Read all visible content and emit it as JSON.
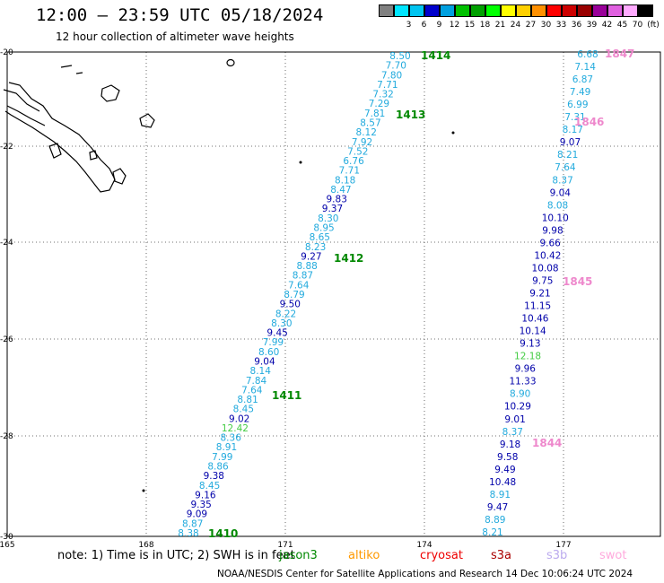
{
  "header": {
    "title": "12:00 – 23:59 UTC 05/18/2024",
    "subtitle": "12 hour collection of altimeter wave heights"
  },
  "legend": {
    "unit": "(ft)",
    "items": [
      {
        "label": "",
        "color": "#808080"
      },
      {
        "label": "3",
        "color": "#00e5ff"
      },
      {
        "label": "6",
        "color": "#00c4f0"
      },
      {
        "label": "9",
        "color": "#0000cc"
      },
      {
        "label": "12",
        "color": "#00a0e0"
      },
      {
        "label": "15",
        "color": "#00c000"
      },
      {
        "label": "18",
        "color": "#00a000"
      },
      {
        "label": "21",
        "color": "#00ff00"
      },
      {
        "label": "24",
        "color": "#ffff00"
      },
      {
        "label": "27",
        "color": "#ffd000"
      },
      {
        "label": "30",
        "color": "#ff9000"
      },
      {
        "label": "33",
        "color": "#ff0000"
      },
      {
        "label": "36",
        "color": "#cc0000"
      },
      {
        "label": "39",
        "color": "#990000"
      },
      {
        "label": "42",
        "color": "#990099"
      },
      {
        "label": "45",
        "color": "#e060e0"
      },
      {
        "label": "70",
        "color": "#ffaaff"
      },
      {
        "label": "",
        "color": "#000000"
      }
    ]
  },
  "axes": {
    "lat_labels": [
      "-20",
      "-22",
      "-24",
      "-26",
      "-28",
      "-30"
    ],
    "lon_labels": [
      "165",
      "168",
      "171",
      "174",
      "177"
    ]
  },
  "colors": {
    "wave_light": "#22aadd",
    "wave_dark": "#0000aa",
    "wave_green": "#44cc44",
    "pass_green": "#008800",
    "pass_pink": "#ee88cc"
  },
  "passes": [
    {
      "id": "1410",
      "color": "pass_green"
    },
    {
      "id": "1411",
      "color": "pass_green"
    },
    {
      "id": "1412",
      "color": "pass_green"
    },
    {
      "id": "1413",
      "color": "pass_green"
    },
    {
      "id": "1414",
      "color": "pass_green"
    },
    {
      "id": "1844",
      "color": "pass_pink"
    },
    {
      "id": "1845",
      "color": "pass_pink"
    },
    {
      "id": "1846",
      "color": "pass_pink"
    },
    {
      "id": "1847",
      "color": "pass_pink"
    }
  ],
  "track_west": [
    {
      "v": "8.50",
      "c": "wave_light"
    },
    {
      "v": "7.70",
      "c": "wave_light"
    },
    {
      "v": "7.80",
      "c": "wave_light"
    },
    {
      "v": "7.71",
      "c": "wave_light"
    },
    {
      "v": "7.32",
      "c": "wave_light"
    },
    {
      "v": "7.29",
      "c": "wave_light"
    },
    {
      "v": "7.81",
      "c": "wave_light"
    },
    {
      "v": "8.57",
      "c": "wave_light"
    },
    {
      "v": "8.12",
      "c": "wave_light"
    },
    {
      "v": "7.92",
      "c": "wave_light"
    },
    {
      "v": "7.52",
      "c": "wave_light"
    },
    {
      "v": "6.76",
      "c": "wave_light"
    },
    {
      "v": "7.71",
      "c": "wave_light"
    },
    {
      "v": "8.18",
      "c": "wave_light"
    },
    {
      "v": "8.47",
      "c": "wave_light"
    },
    {
      "v": "9.83",
      "c": "wave_dark"
    },
    {
      "v": "9.37",
      "c": "wave_dark"
    },
    {
      "v": "8.30",
      "c": "wave_light"
    },
    {
      "v": "8.95",
      "c": "wave_light"
    },
    {
      "v": "8.65",
      "c": "wave_light"
    },
    {
      "v": "8.23",
      "c": "wave_light"
    },
    {
      "v": "9.27",
      "c": "wave_dark"
    },
    {
      "v": "8.88",
      "c": "wave_light"
    },
    {
      "v": "8.87",
      "c": "wave_light"
    },
    {
      "v": "7.64",
      "c": "wave_light"
    },
    {
      "v": "8.79",
      "c": "wave_light"
    },
    {
      "v": "9.50",
      "c": "wave_dark"
    },
    {
      "v": "8.22",
      "c": "wave_light"
    },
    {
      "v": "8.30",
      "c": "wave_light"
    },
    {
      "v": "9.45",
      "c": "wave_dark"
    },
    {
      "v": "7.99",
      "c": "wave_light"
    },
    {
      "v": "8.60",
      "c": "wave_light"
    },
    {
      "v": "9.04",
      "c": "wave_dark"
    },
    {
      "v": "8.14",
      "c": "wave_light"
    },
    {
      "v": "7.84",
      "c": "wave_light"
    },
    {
      "v": "7.64",
      "c": "wave_light"
    },
    {
      "v": "8.81",
      "c": "wave_light"
    },
    {
      "v": "8.45",
      "c": "wave_light"
    },
    {
      "v": "9.02",
      "c": "wave_dark"
    },
    {
      "v": "12.42",
      "c": "wave_green"
    },
    {
      "v": "8.36",
      "c": "wave_light"
    },
    {
      "v": "8.91",
      "c": "wave_light"
    },
    {
      "v": "7.99",
      "c": "wave_light"
    },
    {
      "v": "8.86",
      "c": "wave_light"
    },
    {
      "v": "9.38",
      "c": "wave_dark"
    },
    {
      "v": "8.45",
      "c": "wave_light"
    },
    {
      "v": "9.16",
      "c": "wave_dark"
    },
    {
      "v": "9.35",
      "c": "wave_dark"
    },
    {
      "v": "9.09",
      "c": "wave_dark"
    },
    {
      "v": "8.87",
      "c": "wave_light"
    },
    {
      "v": "8.38",
      "c": "wave_light"
    }
  ],
  "track_east": [
    {
      "v": "6.68",
      "c": "wave_light"
    },
    {
      "v": "7.14",
      "c": "wave_light"
    },
    {
      "v": "6.87",
      "c": "wave_light"
    },
    {
      "v": "7.49",
      "c": "wave_light"
    },
    {
      "v": "6.99",
      "c": "wave_light"
    },
    {
      "v": "7.31",
      "c": "wave_light"
    },
    {
      "v": "8.17",
      "c": "wave_light"
    },
    {
      "v": "9.07",
      "c": "wave_dark"
    },
    {
      "v": "8.21",
      "c": "wave_light"
    },
    {
      "v": "7.64",
      "c": "wave_light"
    },
    {
      "v": "8.37",
      "c": "wave_light"
    },
    {
      "v": "9.04",
      "c": "wave_dark"
    },
    {
      "v": "8.08",
      "c": "wave_light"
    },
    {
      "v": "10.10",
      "c": "wave_dark"
    },
    {
      "v": "9.98",
      "c": "wave_dark"
    },
    {
      "v": "9.66",
      "c": "wave_dark"
    },
    {
      "v": "10.42",
      "c": "wave_dark"
    },
    {
      "v": "10.08",
      "c": "wave_dark"
    },
    {
      "v": "9.75",
      "c": "wave_dark"
    },
    {
      "v": "9.21",
      "c": "wave_dark"
    },
    {
      "v": "11.15",
      "c": "wave_dark"
    },
    {
      "v": "10.46",
      "c": "wave_dark"
    },
    {
      "v": "10.14",
      "c": "wave_dark"
    },
    {
      "v": "9.13",
      "c": "wave_dark"
    },
    {
      "v": "12.18",
      "c": "wave_green"
    },
    {
      "v": "9.96",
      "c": "wave_dark"
    },
    {
      "v": "11.33",
      "c": "wave_dark"
    },
    {
      "v": "8.90",
      "c": "wave_light"
    },
    {
      "v": "10.29",
      "c": "wave_dark"
    },
    {
      "v": "9.01",
      "c": "wave_dark"
    },
    {
      "v": "8.37",
      "c": "wave_light"
    },
    {
      "v": "9.18",
      "c": "wave_dark"
    },
    {
      "v": "9.58",
      "c": "wave_dark"
    },
    {
      "v": "9.49",
      "c": "wave_dark"
    },
    {
      "v": "10.48",
      "c": "wave_dark"
    },
    {
      "v": "8.91",
      "c": "wave_light"
    },
    {
      "v": "9.47",
      "c": "wave_dark"
    },
    {
      "v": "8.89",
      "c": "wave_light"
    },
    {
      "v": "8.21",
      "c": "wave_light"
    }
  ],
  "notes": {
    "prefix": "note:  1) Time is in UTC; 2) SWH is in feet",
    "satellites": [
      {
        "name": "jason3",
        "color": "#008800"
      },
      {
        "name": "altiko",
        "color": "#ff9900"
      },
      {
        "name": "cryosat",
        "color": "#ee0000"
      },
      {
        "name": "s3a",
        "color": "#aa0000"
      },
      {
        "name": "s3b",
        "color": "#bbaaee"
      },
      {
        "name": "swot",
        "color": "#ffaadd"
      }
    ]
  },
  "footer": {
    "text": "NOAA/NESDIS Center for Satellite Applications and Research    14 Dec 10:06:24 UTC 2024"
  }
}
